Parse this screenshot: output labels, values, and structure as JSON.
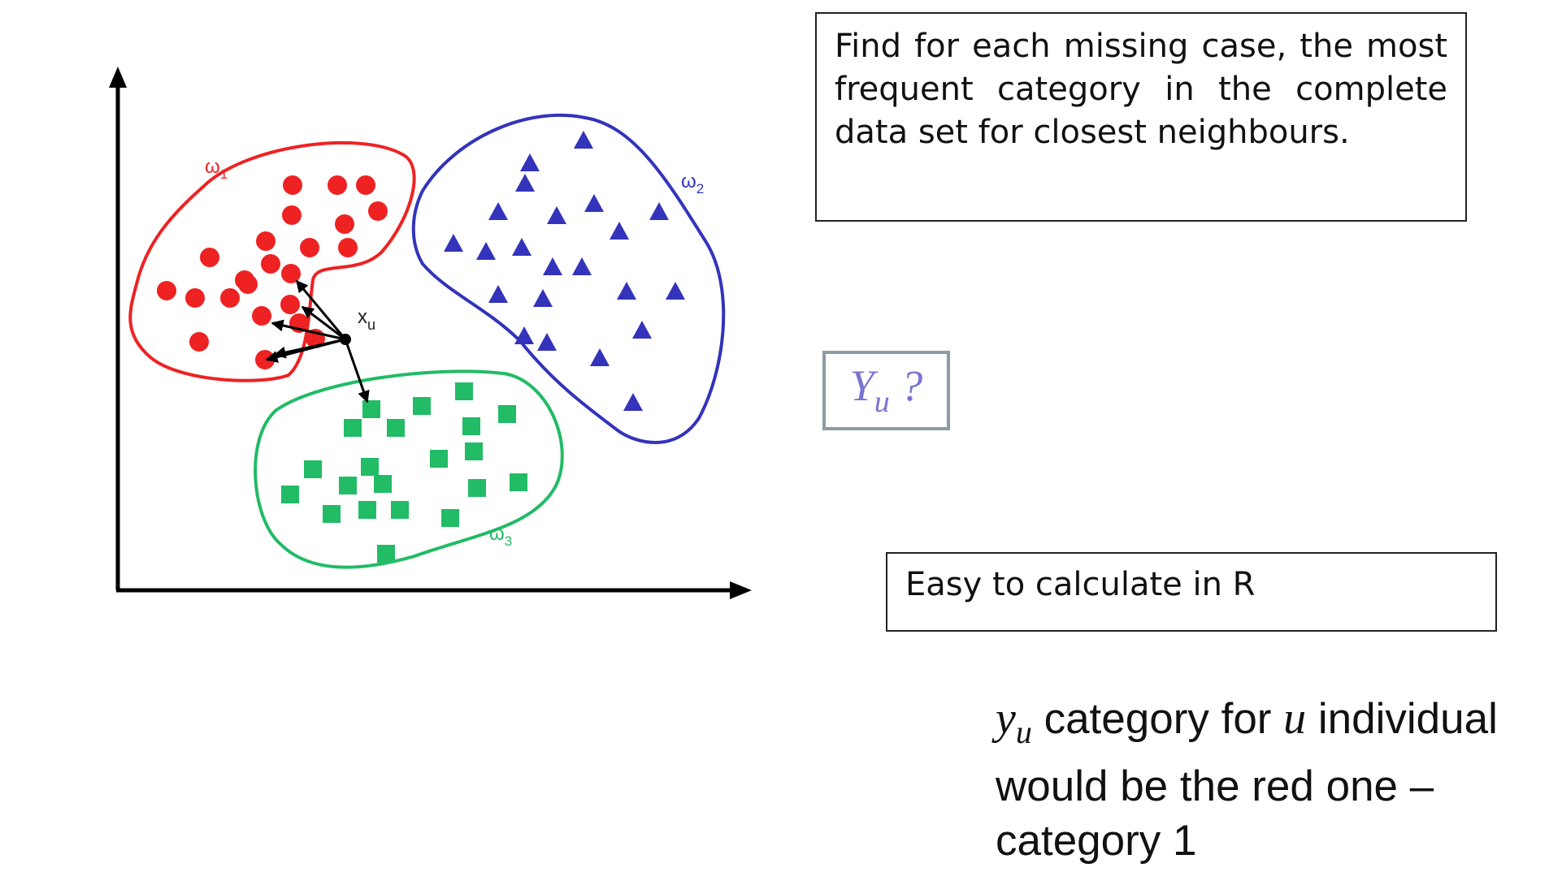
{
  "diagram": {
    "clusters": [
      {
        "label": "ω",
        "subscript": "1",
        "color": "#ee2222",
        "marker": "circle",
        "count": 23
      },
      {
        "label": "ω",
        "subscript": "2",
        "color": "#3333bb",
        "marker": "triangle",
        "count": 22
      },
      {
        "label": "ω",
        "subscript": "3",
        "color": "#22bb66",
        "marker": "square",
        "count": 21
      }
    ],
    "query_point": {
      "label": "x",
      "subscript": "u"
    },
    "axis_color": "#000000"
  },
  "find_box": {
    "text": "Find for each missing case, the most frequent category in the complete data set for closest neighbours."
  },
  "yu_box": {
    "symbol": "Y",
    "subscript": "u",
    "suffix": " ?",
    "color": "#7b74cf",
    "border_color": "#8c9ca5"
  },
  "easy_box": {
    "text": "Easy to calculate in R"
  },
  "conclusion": {
    "symbol": "y",
    "subscript": "u",
    "part1": " category for ",
    "var": "u",
    "part2": " individual would be the red one – category 1"
  }
}
